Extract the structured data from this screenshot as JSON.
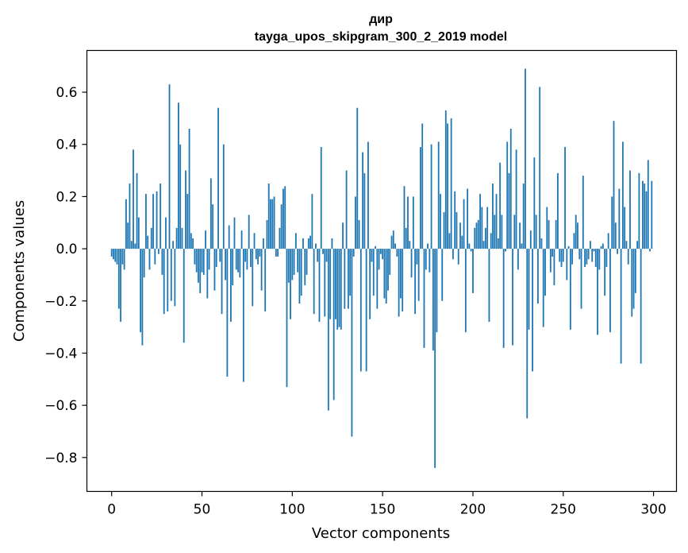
{
  "chart_data": {
    "type": "bar",
    "title": "дир",
    "subtitle": "tayga_upos_skipgram_300_2_2019 model",
    "xlabel": "Vector components",
    "ylabel": "Components values",
    "xlim": [
      -13.7,
      312.7
    ],
    "ylim": [
      -0.93,
      0.76
    ],
    "x_ticks": [
      0,
      50,
      100,
      150,
      200,
      250,
      300
    ],
    "x_tick_labels": [
      "0",
      "50",
      "100",
      "150",
      "200",
      "250",
      "300"
    ],
    "y_ticks": [
      -0.8,
      -0.6,
      -0.4,
      -0.2,
      0.0,
      0.2,
      0.4,
      0.6
    ],
    "y_tick_labels": [
      "−0.8",
      "−0.6",
      "−0.4",
      "−0.2",
      "0.0",
      "0.2",
      "0.4",
      "0.6"
    ],
    "bar_color": "#1f77b4",
    "grid": false,
    "x": "0..299 (one bar per vector component)",
    "values": [
      -0.03,
      -0.04,
      -0.05,
      -0.06,
      -0.23,
      -0.28,
      -0.06,
      -0.08,
      0.19,
      0.1,
      0.25,
      0.03,
      0.38,
      0.02,
      0.29,
      0.12,
      -0.32,
      -0.37,
      -0.11,
      0.21,
      0.05,
      -0.08,
      0.08,
      0.21,
      -0.06,
      0.22,
      -0.02,
      0.25,
      -0.1,
      -0.25,
      0.12,
      -0.24,
      0.63,
      -0.2,
      0.03,
      -0.22,
      0.08,
      0.56,
      0.4,
      0.08,
      -0.36,
      0.3,
      0.21,
      0.46,
      0.06,
      0.04,
      -0.06,
      -0.09,
      -0.13,
      -0.17,
      -0.09,
      -0.1,
      0.07,
      -0.19,
      -0.08,
      0.27,
      0.17,
      -0.16,
      -0.07,
      0.54,
      -0.05,
      -0.25,
      0.4,
      -0.12,
      -0.49,
      0.09,
      -0.28,
      -0.14,
      0.12,
      -0.08,
      -0.09,
      -0.11,
      0.07,
      -0.51,
      -0.05,
      -0.08,
      0.13,
      -0.07,
      -0.22,
      0.06,
      -0.04,
      -0.06,
      -0.03,
      -0.16,
      0.04,
      -0.24,
      0.11,
      0.25,
      0.19,
      0.19,
      0.2,
      -0.03,
      -0.03,
      0.08,
      0.17,
      0.23,
      0.24,
      -0.53,
      -0.13,
      -0.27,
      -0.12,
      -0.1,
      0.06,
      -0.09,
      -0.21,
      -0.18,
      0.04,
      -0.14,
      -0.1,
      0.04,
      0.05,
      0.21,
      -0.25,
      0.02,
      -0.05,
      -0.28,
      0.39,
      -0.02,
      -0.26,
      -0.05,
      -0.62,
      -0.27,
      0.04,
      -0.58,
      -0.27,
      -0.31,
      -0.3,
      -0.31,
      0.1,
      -0.23,
      0.3,
      -0.23,
      -0.18,
      -0.72,
      -0.03,
      0.2,
      0.54,
      0.11,
      -0.47,
      0.37,
      0.29,
      -0.47,
      0.41,
      -0.27,
      -0.05,
      -0.18,
      0.01,
      -0.23,
      -0.08,
      -0.02,
      -0.04,
      -0.19,
      -0.21,
      -0.16,
      -0.1,
      0.05,
      0.07,
      0.02,
      -0.03,
      -0.26,
      -0.19,
      -0.24,
      0.24,
      0.08,
      0.2,
      0.03,
      -0.11,
      0.2,
      -0.25,
      -0.06,
      -0.2,
      0.39,
      0.48,
      -0.38,
      -0.08,
      0.02,
      -0.09,
      0.4,
      -0.39,
      -0.84,
      -0.32,
      0.41,
      0.21,
      -0.2,
      0.14,
      0.53,
      0.48,
      0.06,
      0.5,
      -0.04,
      0.22,
      0.14,
      -0.06,
      0.1,
      0.05,
      0.19,
      -0.32,
      0.23,
      0.02,
      -0.01,
      -0.17,
      0.08,
      0.1,
      0.11,
      0.21,
      0.16,
      0.03,
      0.08,
      0.16,
      -0.28,
      0.06,
      0.25,
      0.13,
      0.21,
      0.04,
      0.33,
      0.13,
      -0.38,
      -0.01,
      0.41,
      0.29,
      0.46,
      -0.37,
      0.13,
      0.38,
      -0.08,
      0.1,
      0.02,
      0.25,
      0.69,
      -0.65,
      -0.31,
      0.07,
      -0.47,
      0.35,
      0.13,
      -0.21,
      0.62,
      0.04,
      -0.3,
      -0.18,
      0.16,
      0.11,
      -0.09,
      -0.03,
      -0.14,
      0.11,
      0.29,
      -0.05,
      -0.07,
      -0.05,
      0.39,
      -0.12,
      0.01,
      -0.31,
      -0.06,
      0.06,
      0.13,
      0.1,
      -0.04,
      -0.23,
      0.28,
      -0.07,
      -0.06,
      -0.04,
      0.03,
      -0.05,
      -0.01,
      -0.07,
      -0.33,
      -0.08,
      0.01,
      0.02,
      -0.18,
      -0.07,
      0.06,
      -0.32,
      0.2,
      0.49,
      0.1,
      -0.02,
      0.23,
      -0.44,
      0.41,
      0.16,
      0.03,
      -0.06,
      0.3,
      -0.26,
      -0.23,
      -0.17,
      0.03,
      0.29,
      -0.44,
      0.26,
      0.25,
      0.22,
      0.34,
      -0.01,
      0.26
    ]
  }
}
